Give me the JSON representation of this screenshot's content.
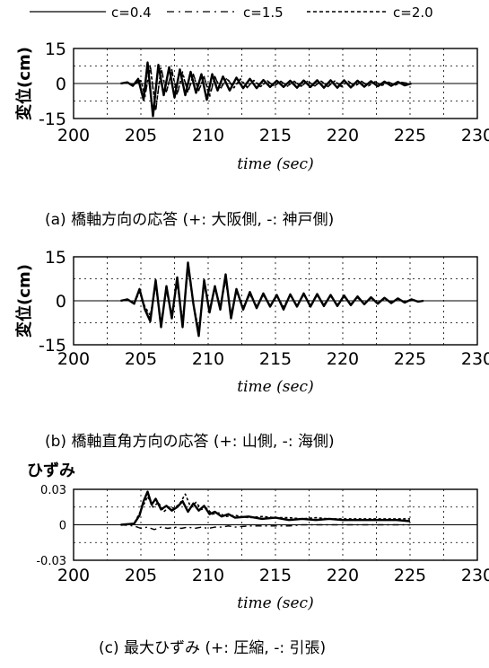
{
  "legend": [
    {
      "label": "c=0.4",
      "style": "solid"
    },
    {
      "label": "c=1.5",
      "style": "dashdot"
    },
    {
      "label": "c=2.0",
      "style": "dotted"
    }
  ],
  "chart_data": [
    {
      "type": "line",
      "ylabel": "変位(cm)",
      "xlabel": "time (sec)",
      "caption": "(a)  橋軸方向の応答 (+: 大阪側, -: 神戸側)",
      "xlim": [
        200,
        230
      ],
      "ylim": [
        -15,
        15
      ],
      "xticks": [
        200,
        205,
        210,
        215,
        220,
        225,
        230
      ],
      "xtick_labels": [
        "200",
        "205",
        "210",
        "215",
        "220",
        "225",
        "230"
      ],
      "yticks": [
        -15,
        0,
        15
      ],
      "ytick_labels": [
        "-15",
        "0",
        "15"
      ],
      "grid": true,
      "series": [
        {
          "name": "c=0.4",
          "x": [
            203.5,
            204,
            204.4,
            204.8,
            205.2,
            205.5,
            205.9,
            206.3,
            206.7,
            207.1,
            207.5,
            207.9,
            208.3,
            208.7,
            209.1,
            209.5,
            209.9,
            210.3,
            210.7,
            211.1,
            211.6,
            212.1,
            212.6,
            213.1,
            213.6,
            214.1,
            214.6,
            215.1,
            215.6,
            216.1,
            216.6,
            217.1,
            217.6,
            218.1,
            218.6,
            219.1,
            219.6,
            220.1,
            220.6,
            221.1,
            221.6,
            222.1,
            222.6,
            223.1,
            223.6,
            224.1,
            224.6,
            225.1
          ],
          "y": [
            0,
            0.5,
            -1,
            2,
            -7,
            9,
            -14,
            8,
            -5,
            7,
            -6,
            6,
            -5,
            5,
            -4,
            4,
            -7,
            4,
            -3,
            3,
            -3,
            2.5,
            -2,
            2,
            -2,
            1.5,
            -1.5,
            1.2,
            -1.5,
            1.2,
            -1.8,
            1.3,
            -1.5,
            1.4,
            -1.8,
            1.4,
            -1.8,
            1.4,
            -1.7,
            1.2,
            -1.4,
            1,
            -1.2,
            0.8,
            -1,
            0.7,
            -0.8,
            0
          ]
        },
        {
          "name": "c=1.5",
          "x": [
            203.5,
            204,
            204.5,
            205,
            205.3,
            205.7,
            206.1,
            206.5,
            206.9,
            207.3,
            207.7,
            208.1,
            208.5,
            208.9,
            209.3,
            209.7,
            210.1,
            210.5,
            210.9,
            211.4,
            211.9,
            212.4,
            212.9,
            213.4,
            213.9,
            214.4,
            214.9,
            215.4,
            215.9,
            216.4,
            216.9,
            217.4,
            217.9,
            218.4,
            218.9,
            219.4,
            219.9,
            220.4,
            220.9,
            221.4,
            221.9,
            222.4,
            222.9,
            223.4,
            223.9,
            224.4,
            224.9
          ],
          "y": [
            0,
            0.3,
            -0.5,
            1.5,
            -6,
            8,
            -12,
            7,
            -4,
            6,
            -5,
            5,
            -4,
            4,
            -3,
            3,
            -6,
            3,
            -2.5,
            2.5,
            -2,
            2,
            -1.8,
            1.5,
            -1.5,
            1.2,
            -1.2,
            1,
            -1.2,
            1,
            -1.4,
            1.1,
            -1.2,
            1.1,
            -1.4,
            1.1,
            -1.4,
            1.1,
            -1.3,
            1,
            -1.1,
            0.8,
            -0.9,
            0.6,
            -0.7,
            0.5,
            0
          ]
        },
        {
          "name": "c=2.0",
          "x": [
            203.5,
            204,
            204.5,
            205,
            205.3,
            205.7,
            206.1,
            206.5,
            206.9,
            207.3,
            207.7,
            208.1,
            208.5,
            208.9,
            209.3,
            209.7,
            210.1,
            210.5,
            210.9,
            211.4,
            211.9,
            212.4,
            212.9,
            213.4,
            213.9,
            214.4,
            214.9,
            215.4,
            215.9,
            216.4,
            216.9,
            217.4,
            217.9,
            218.4,
            218.9,
            219.4,
            219.9,
            220.4,
            220.9,
            221.4,
            221.9,
            222.4,
            222.9,
            223.4,
            223.9,
            224.4,
            224.9
          ],
          "y": [
            0,
            0.3,
            -0.4,
            1.2,
            -5,
            7,
            -11,
            6,
            -3.5,
            5,
            -4,
            4,
            -3.5,
            3.5,
            -3,
            2.8,
            -5,
            2.8,
            -2,
            2,
            -1.8,
            1.8,
            -1.5,
            1.3,
            -1.3,
            1,
            -1,
            0.9,
            -1,
            0.9,
            -1.2,
            1,
            -1,
            1,
            -1.2,
            1,
            -1.2,
            1,
            -1.1,
            0.9,
            -1,
            0.7,
            -0.8,
            0.5,
            -0.6,
            0.4,
            0
          ]
        }
      ]
    },
    {
      "type": "line",
      "ylabel": "変位(cm)",
      "xlabel": "time (sec)",
      "caption": "(b)  橋軸直角方向の応答  (+: 山側, -: 海側)",
      "xlim": [
        200,
        230
      ],
      "ylim": [
        -15,
        15
      ],
      "xticks": [
        200,
        205,
        210,
        215,
        220,
        225,
        230
      ],
      "xtick_labels": [
        "200",
        "205",
        "210",
        "215",
        "220",
        "225",
        "230"
      ],
      "yticks": [
        -15,
        0,
        15
      ],
      "ytick_labels": [
        "-15",
        "0",
        "15"
      ],
      "grid": true,
      "series": [
        {
          "name": "c=0.4",
          "x": [
            203.5,
            204,
            204.5,
            204.9,
            205.3,
            205.7,
            206.1,
            206.5,
            206.9,
            207.3,
            207.7,
            208.1,
            208.5,
            208.9,
            209.3,
            209.7,
            210.1,
            210.5,
            210.9,
            211.3,
            211.7,
            212.1,
            212.6,
            213.1,
            213.6,
            214.1,
            214.6,
            215.1,
            215.6,
            216.1,
            216.6,
            217.1,
            217.6,
            218.1,
            218.6,
            219.1,
            219.6,
            220.1,
            220.6,
            221.1,
            221.6,
            222.1,
            222.6,
            223.1,
            223.6,
            224.1,
            224.6,
            225.1,
            225.6,
            226
          ],
          "y": [
            0,
            0.5,
            -1,
            4,
            -3,
            -7,
            7,
            -9,
            5,
            -6,
            8,
            -9,
            13,
            -1,
            -12,
            7,
            -4,
            5,
            -3,
            9,
            -6,
            4,
            -3,
            3,
            -2.5,
            2.5,
            -2,
            2,
            -3,
            2.2,
            -2,
            2.5,
            -2,
            2.3,
            -1.8,
            2,
            -1.8,
            1.8,
            -1.5,
            1.5,
            -1.2,
            1.2,
            -1,
            1,
            -0.8,
            0.8,
            -0.6,
            0.5,
            -0.3,
            0
          ]
        },
        {
          "name": "c=1.5",
          "x": [
            203.5,
            204,
            204.5,
            204.9,
            205.3,
            205.7,
            206.1,
            206.5,
            206.9,
            207.3,
            207.7,
            208.1,
            208.5,
            208.9,
            209.3,
            209.7,
            210.1,
            210.5,
            210.9,
            211.3,
            211.7,
            212.1,
            212.6,
            213.1,
            213.6,
            214.1,
            214.6,
            215.1,
            215.6,
            216.1,
            216.6,
            217.1,
            217.6,
            218.1,
            218.6,
            219.1,
            219.6,
            220.1,
            220.6,
            221.1,
            221.6,
            222.1,
            222.6,
            223.1,
            223.6,
            224.1,
            224.6,
            225.1,
            225.6,
            226
          ],
          "y": [
            0,
            0.4,
            -0.8,
            3.5,
            -2.5,
            -6,
            6,
            -8,
            4,
            -5,
            7,
            -8,
            12,
            -1,
            -11,
            6,
            -3.5,
            4.5,
            -2.5,
            8,
            -5,
            3.5,
            -2.5,
            2.5,
            -2,
            2,
            -1.8,
            1.8,
            -2.5,
            2,
            -1.8,
            2.2,
            -1.8,
            2,
            -1.5,
            1.8,
            -1.5,
            1.5,
            -1.2,
            1.2,
            -1,
            1,
            -0.8,
            0.8,
            -0.6,
            0.6,
            -0.5,
            0.4,
            -0.2,
            0
          ]
        },
        {
          "name": "c=2.0",
          "x": [
            203.5,
            204,
            204.5,
            204.9,
            205.3,
            205.7,
            206.1,
            206.5,
            206.9,
            207.3,
            207.7,
            208.1,
            208.5,
            208.9,
            209.3,
            209.7,
            210.1,
            210.5,
            210.9,
            211.3,
            211.7,
            212.1,
            212.6,
            213.1,
            213.6,
            214.1,
            214.6,
            215.1,
            215.6,
            216.1,
            216.6,
            217.1,
            217.6,
            218.1,
            218.6,
            219.1,
            219.6,
            220.1,
            220.6,
            221.1,
            221.6,
            222.1,
            222.6,
            223.1,
            223.6,
            224.1,
            224.6,
            225.1,
            225.6,
            226
          ],
          "y": [
            0,
            0.3,
            -0.7,
            3,
            -2,
            -5,
            5,
            -7,
            3.5,
            -4.5,
            6,
            -7,
            11,
            -1,
            -10,
            5.5,
            -3,
            4,
            -2,
            7,
            -4.5,
            3,
            -2,
            2,
            -1.8,
            1.8,
            -1.5,
            1.5,
            -2,
            1.8,
            -1.5,
            2,
            -1.5,
            1.8,
            -1.3,
            1.5,
            -1.3,
            1.3,
            -1,
            1,
            -0.8,
            0.8,
            -0.7,
            0.7,
            -0.5,
            0.5,
            -0.4,
            0.3,
            -0.2,
            0
          ]
        }
      ]
    },
    {
      "type": "line",
      "title": "ひずみ",
      "xlabel": "time (sec)",
      "caption": "(c)  最大ひずみ    (+:  圧縮, -: 引張)",
      "xlim": [
        200,
        230
      ],
      "ylim": [
        -0.03,
        0.03
      ],
      "xticks": [
        200,
        205,
        210,
        215,
        220,
        225,
        230
      ],
      "xtick_labels": [
        "200",
        "205",
        "210",
        "215",
        "220",
        "225",
        "230"
      ],
      "yticks": [
        -0.03,
        0,
        0.03
      ],
      "ytick_labels": [
        "-0.03",
        "0",
        "0.03"
      ],
      "grid": true,
      "series": [
        {
          "name": "c=0.4",
          "x": [
            203.5,
            204.5,
            204.9,
            205.2,
            205.5,
            205.8,
            206.1,
            206.5,
            206.9,
            207.3,
            207.7,
            208.1,
            208.5,
            208.9,
            209.3,
            209.7,
            210.1,
            210.5,
            211,
            211.5,
            212,
            213,
            214,
            215,
            216,
            217,
            218,
            219,
            220,
            221,
            222,
            223,
            224,
            225
          ],
          "y": [
            0,
            0.001,
            0.008,
            0.02,
            0.028,
            0.017,
            0.022,
            0.013,
            0.016,
            0.012,
            0.015,
            0.02,
            0.011,
            0.018,
            0.012,
            0.016,
            0.009,
            0.011,
            0.007,
            0.009,
            0.006,
            0.007,
            0.005,
            0.006,
            0.004,
            0.005,
            0.004,
            0.005,
            0.004,
            0.004,
            0.004,
            0.004,
            0.004,
            0.003
          ]
        },
        {
          "name": "c=1.5",
          "x": [
            203.5,
            204.5,
            205,
            205.5,
            206,
            206.5,
            207,
            207.5,
            208,
            208.5,
            209,
            209.5,
            210,
            210.5,
            211,
            211.5,
            212,
            213,
            214,
            215,
            216,
            217,
            218,
            219,
            220,
            221,
            222,
            223,
            224,
            225
          ],
          "y": [
            0,
            -0.001,
            -0.003,
            -0.002,
            -0.004,
            -0.002,
            -0.003,
            -0.002,
            -0.003,
            -0.002,
            -0.003,
            -0.002,
            -0.003,
            -0.002,
            -0.002,
            -0.001,
            -0.002,
            -0.001,
            -0.001,
            -0.001,
            -0.001,
            0,
            0,
            0,
            0,
            0,
            0,
            0,
            0,
            0
          ]
        },
        {
          "name": "c=2.0",
          "x": [
            203.5,
            204.5,
            205,
            205.5,
            205.9,
            206.3,
            206.7,
            207.1,
            207.5,
            207.9,
            208.3,
            208.7,
            209.1,
            209.5,
            209.9,
            210.3,
            210.8,
            211.3,
            212,
            213,
            214,
            215,
            216,
            217,
            218,
            219,
            220,
            221,
            222,
            223,
            224,
            225
          ],
          "y": [
            0,
            0.001,
            0.012,
            0.024,
            0.015,
            0.019,
            0.011,
            0.015,
            0.014,
            0.018,
            0.026,
            0.015,
            0.019,
            0.013,
            0.014,
            0.009,
            0.01,
            0.007,
            0.008,
            0.006,
            0.007,
            0.006,
            0.006,
            0.005,
            0.006,
            0.005,
            0.005,
            0.005,
            0.005,
            0.005,
            0.005,
            0.005
          ]
        }
      ]
    }
  ]
}
